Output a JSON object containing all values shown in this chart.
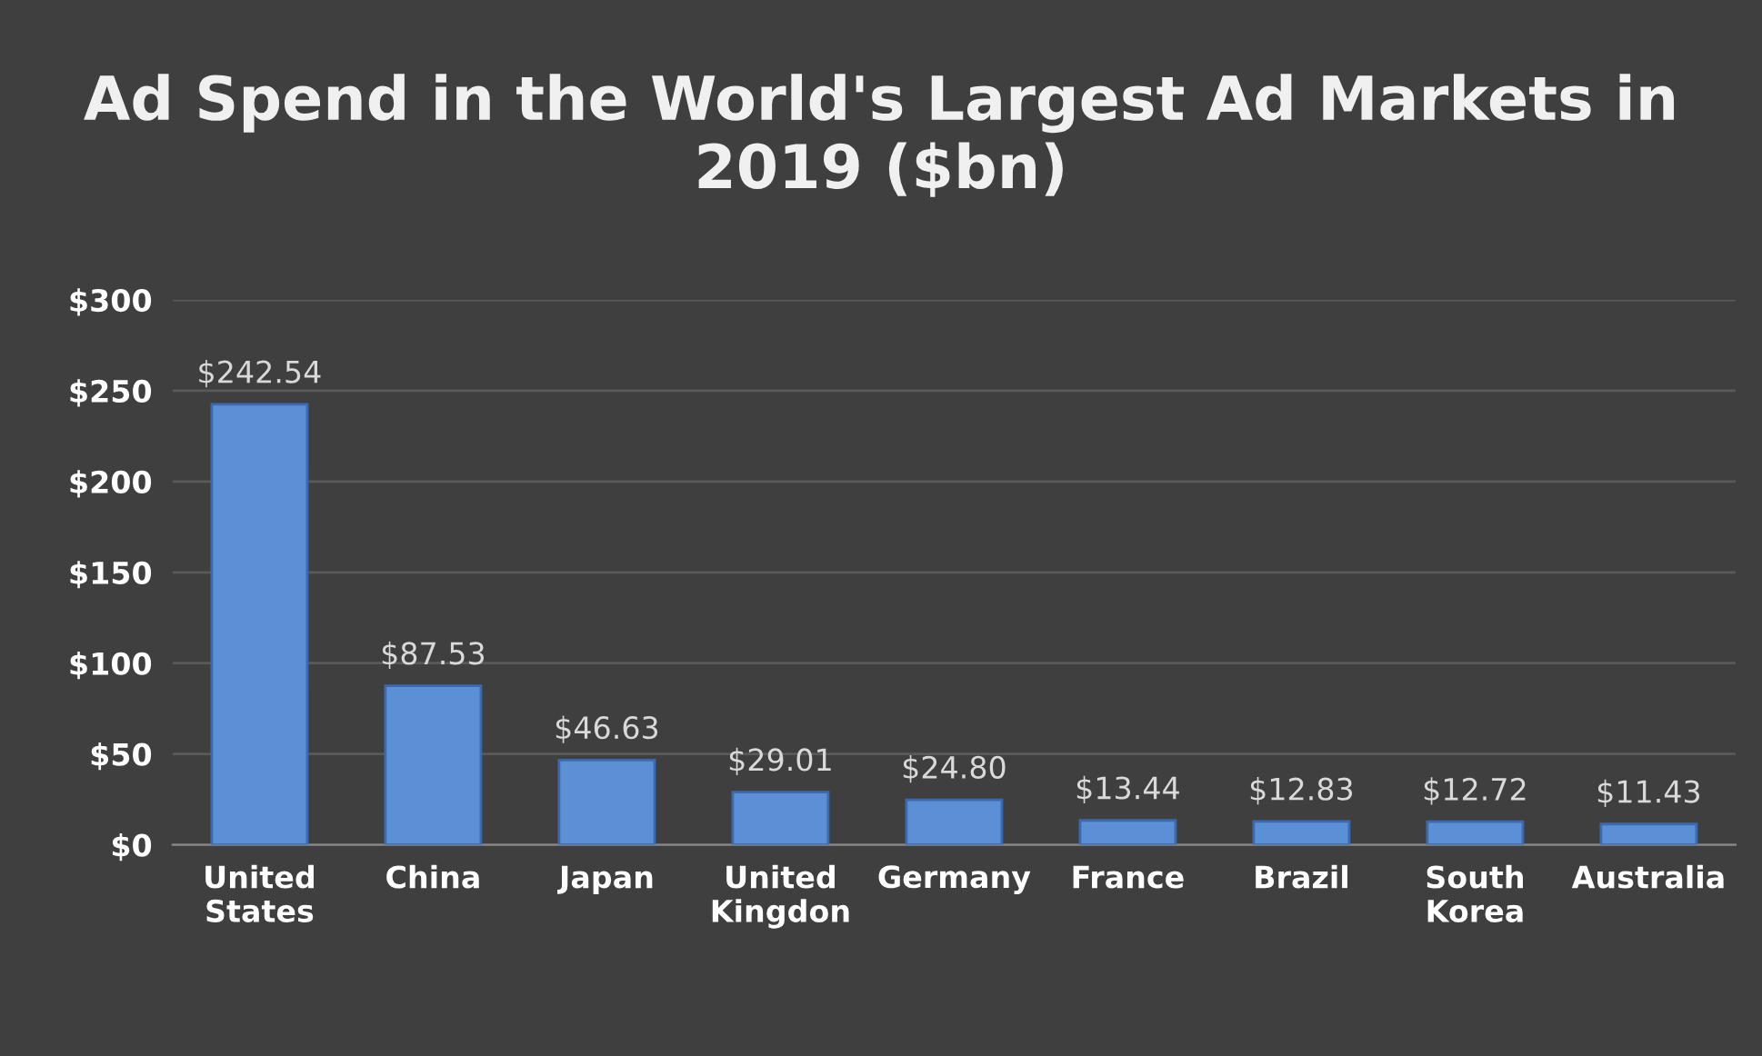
{
  "chart_data": {
    "type": "bar",
    "title": "Ad Spend in the World's Largest Ad Markets in 2019 ($bn)",
    "categories": [
      "United States",
      "China",
      "Japan",
      "United Kingdon",
      "Germany",
      "France",
      "Brazil",
      "South Korea",
      "Australia"
    ],
    "values": [
      242.54,
      87.53,
      46.63,
      29.01,
      24.8,
      13.44,
      12.83,
      12.72,
      11.43
    ],
    "value_labels": [
      "$242.54",
      "$87.53",
      "$46.63",
      "$29.01",
      "$24.80",
      "$13.44",
      "$12.83",
      "$12.72",
      "$11.43"
    ],
    "color": "#5b8fd6",
    "ylim": [
      0,
      300
    ],
    "yticks": [
      {
        "value": 0,
        "label": "$0"
      },
      {
        "value": 50,
        "label": "$50"
      },
      {
        "value": 100,
        "label": "$100"
      },
      {
        "value": 150,
        "label": "$150"
      },
      {
        "value": 200,
        "label": "$200"
      },
      {
        "value": 250,
        "label": "$250"
      },
      {
        "value": 300,
        "label": "$300"
      }
    ],
    "grid": "y",
    "legend": false
  }
}
